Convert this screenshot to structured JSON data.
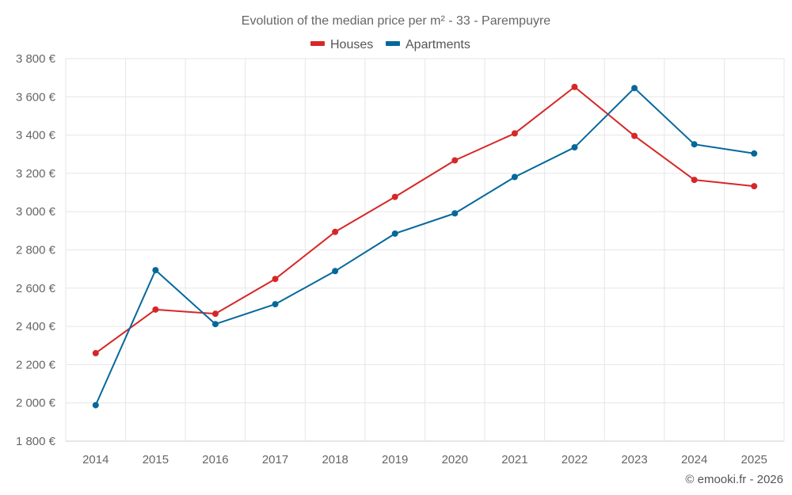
{
  "chart_data": {
    "type": "line",
    "title": "Evolution of the median price per m² - 33 - Parempuyre",
    "categories": [
      "2014",
      "2015",
      "2016",
      "2017",
      "2018",
      "2019",
      "2020",
      "2021",
      "2022",
      "2023",
      "2024",
      "2025"
    ],
    "series": [
      {
        "name": "Houses",
        "color": "#d62728",
        "values": [
          2260,
          2488,
          2466,
          2648,
          2894,
          3077,
          3268,
          3409,
          3652,
          3396,
          3166,
          3133
        ]
      },
      {
        "name": "Apartments",
        "color": "#05689b",
        "values": [
          1988,
          2694,
          2412,
          2516,
          2689,
          2885,
          2991,
          3181,
          3336,
          3646,
          3352,
          3304
        ]
      }
    ],
    "y_ticks": [
      1800,
      2000,
      2200,
      2400,
      2600,
      2800,
      3000,
      3200,
      3400,
      3600,
      3800
    ],
    "y_tick_labels": [
      "1 800 €",
      "2 000 €",
      "2 200 €",
      "2 400 €",
      "2 600 €",
      "2 800 €",
      "3 000 €",
      "3 200 €",
      "3 400 €",
      "3 600 €",
      "3 800 €"
    ],
    "ylim": [
      1800,
      3800
    ],
    "xlabel": "",
    "ylabel": "",
    "grid": true,
    "legend": "top-center",
    "credit": "© emooki.fr - 2026"
  }
}
